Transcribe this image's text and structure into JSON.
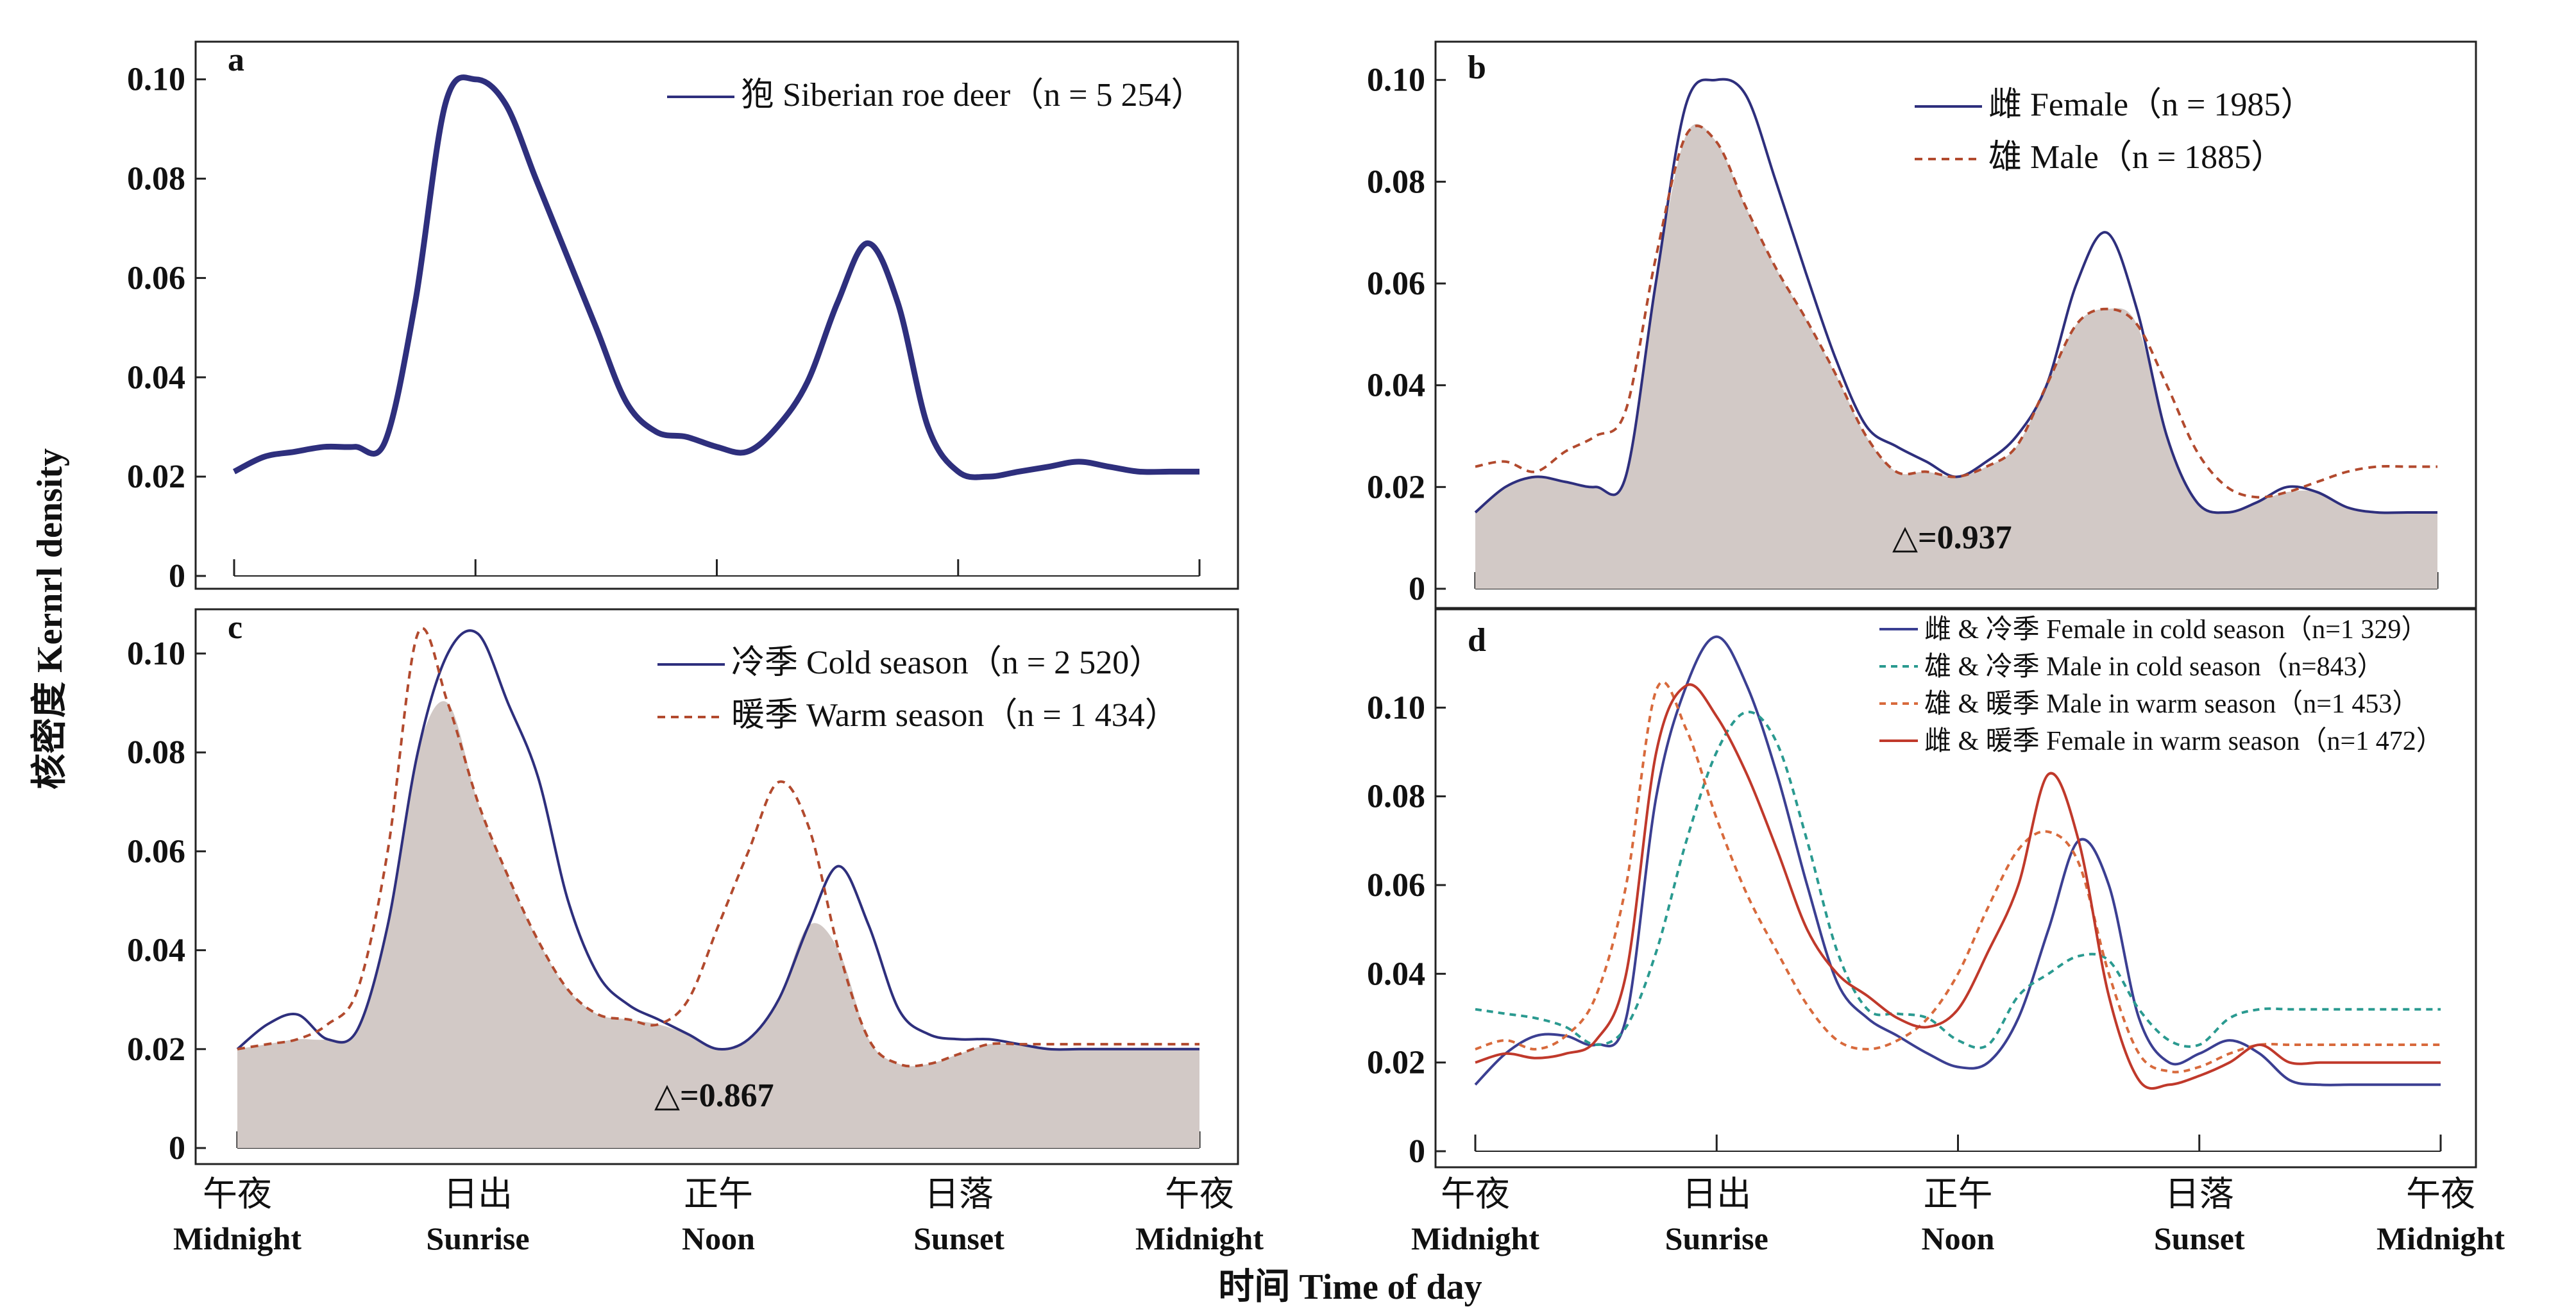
{
  "figure": {
    "ylabel": "核密度 Kernrl density",
    "xlabel": "时间 Time of day",
    "x_categories": [
      {
        "zh": "午夜",
        "en": "Midnight"
      },
      {
        "zh": "日出",
        "en": "Sunrise"
      },
      {
        "zh": "正午",
        "en": "Noon"
      },
      {
        "zh": "日落",
        "en": "Sunset"
      },
      {
        "zh": "午夜",
        "en": "Midnight"
      }
    ]
  },
  "chart_data": [
    {
      "panel": "a",
      "type": "line",
      "x": [
        0,
        1,
        2,
        3,
        4,
        5,
        6,
        7,
        8,
        9,
        10,
        11,
        12,
        13,
        14,
        15,
        16,
        17,
        18,
        19,
        20,
        21,
        22,
        23,
        24,
        25,
        26,
        27,
        28,
        29,
        30,
        31,
        32
      ],
      "ylim": [
        0,
        0.105
      ],
      "yticks": [
        "0",
        "0.02",
        "0.04",
        "0.06",
        "0.08",
        "0.10"
      ],
      "shaded": false,
      "overlap": "",
      "series": [
        {
          "name": "狍 Siberian roe deer（n = 5 254）",
          "color": "#2e2f7d",
          "dash": "",
          "width": 9,
          "values": [
            0.021,
            0.024,
            0.025,
            0.026,
            0.026,
            0.027,
            0.055,
            0.095,
            0.1,
            0.095,
            0.08,
            0.065,
            0.05,
            0.035,
            0.029,
            0.028,
            0.026,
            0.025,
            0.03,
            0.039,
            0.055,
            0.067,
            0.055,
            0.03,
            0.021,
            0.02,
            0.021,
            0.022,
            0.023,
            0.022,
            0.021,
            0.021,
            0.021
          ]
        }
      ]
    },
    {
      "panel": "b",
      "type": "line",
      "x": [
        0,
        1,
        2,
        3,
        4,
        5,
        6,
        7,
        8,
        9,
        10,
        11,
        12,
        13,
        14,
        15,
        16,
        17,
        18,
        19,
        20,
        21,
        22,
        23,
        24,
        25,
        26,
        27,
        28,
        29,
        30,
        31,
        32
      ],
      "ylim": [
        0,
        0.105
      ],
      "yticks": [
        "0",
        "0.02",
        "0.04",
        "0.06",
        "0.08",
        "0.10"
      ],
      "shaded": true,
      "overlap": "△=0.937",
      "series": [
        {
          "name": "雌 Female（n = 1985）",
          "color": "#2e2f7d",
          "dash": "",
          "width": 4,
          "values": [
            0.015,
            0.02,
            0.022,
            0.021,
            0.02,
            0.022,
            0.06,
            0.095,
            0.1,
            0.097,
            0.08,
            0.062,
            0.045,
            0.032,
            0.028,
            0.025,
            0.022,
            0.025,
            0.03,
            0.04,
            0.06,
            0.07,
            0.055,
            0.03,
            0.017,
            0.015,
            0.017,
            0.02,
            0.019,
            0.016,
            0.015,
            0.015,
            0.015
          ]
        },
        {
          "name": "雄 Male（n = 1885）",
          "color": "#b24a2e",
          "dash": "12,9",
          "width": 4,
          "values": [
            0.024,
            0.025,
            0.023,
            0.027,
            0.03,
            0.035,
            0.065,
            0.089,
            0.088,
            0.075,
            0.063,
            0.053,
            0.042,
            0.03,
            0.023,
            0.023,
            0.022,
            0.024,
            0.028,
            0.04,
            0.052,
            0.055,
            0.052,
            0.04,
            0.027,
            0.02,
            0.018,
            0.019,
            0.021,
            0.023,
            0.024,
            0.024,
            0.024
          ]
        }
      ]
    },
    {
      "panel": "c",
      "type": "line",
      "x": [
        0,
        1,
        2,
        3,
        4,
        5,
        6,
        7,
        8,
        9,
        10,
        11,
        12,
        13,
        14,
        15,
        16,
        17,
        18,
        19,
        20,
        21,
        22,
        23,
        24,
        25,
        26,
        27,
        28,
        29,
        30,
        31,
        32
      ],
      "ylim": [
        0,
        0.107
      ],
      "yticks": [
        "0",
        "0.02",
        "0.04",
        "0.06",
        "0.08",
        "0.10"
      ],
      "shaded": true,
      "overlap": "△=0.867",
      "series": [
        {
          "name": "冷季 Cold season（n = 2 520）",
          "color": "#2e2f7d",
          "dash": "",
          "width": 4,
          "values": [
            0.02,
            0.025,
            0.027,
            0.022,
            0.024,
            0.045,
            0.08,
            0.1,
            0.104,
            0.09,
            0.075,
            0.05,
            0.035,
            0.029,
            0.026,
            0.023,
            0.02,
            0.022,
            0.03,
            0.045,
            0.057,
            0.045,
            0.028,
            0.023,
            0.022,
            0.022,
            0.021,
            0.02,
            0.02,
            0.02,
            0.02,
            0.02,
            0.02
          ]
        },
        {
          "name": "暖季 Warm season（n = 1 434）",
          "color": "#b24a2e",
          "dash": "12,9",
          "width": 4,
          "values": [
            0.02,
            0.021,
            0.022,
            0.025,
            0.032,
            0.06,
            0.104,
            0.09,
            0.07,
            0.055,
            0.042,
            0.032,
            0.027,
            0.026,
            0.025,
            0.03,
            0.045,
            0.06,
            0.074,
            0.065,
            0.04,
            0.022,
            0.017,
            0.017,
            0.019,
            0.021,
            0.021,
            0.021,
            0.021,
            0.021,
            0.021,
            0.021,
            0.021
          ]
        }
      ]
    },
    {
      "panel": "d",
      "type": "line",
      "x": [
        0,
        1,
        2,
        3,
        4,
        5,
        6,
        7,
        8,
        9,
        10,
        11,
        12,
        13,
        14,
        15,
        16,
        17,
        18,
        19,
        20,
        21,
        22,
        23,
        24,
        25,
        26,
        27,
        28,
        29,
        30,
        31,
        32
      ],
      "ylim": [
        0,
        0.12
      ],
      "yticks": [
        "0",
        "0.02",
        "0.04",
        "0.06",
        "0.08",
        "0.10"
      ],
      "shaded": false,
      "overlap": "",
      "series": [
        {
          "name": "雌 & 冷季 Female in cold season（n=1 329）",
          "color": "#3b3f92",
          "dash": "",
          "width": 4,
          "values": [
            0.015,
            0.022,
            0.026,
            0.026,
            0.024,
            0.03,
            0.08,
            0.105,
            0.116,
            0.105,
            0.085,
            0.06,
            0.038,
            0.03,
            0.026,
            0.022,
            0.019,
            0.02,
            0.03,
            0.05,
            0.07,
            0.06,
            0.03,
            0.02,
            0.022,
            0.025,
            0.022,
            0.016,
            0.015,
            0.015,
            0.015,
            0.015,
            0.015
          ]
        },
        {
          "name": "雄 & 冷季 Male in cold season（n=843）",
          "color": "#2a9a90",
          "dash": "10,8",
          "width": 4,
          "values": [
            0.032,
            0.031,
            0.03,
            0.028,
            0.024,
            0.028,
            0.045,
            0.07,
            0.09,
            0.099,
            0.092,
            0.07,
            0.045,
            0.032,
            0.031,
            0.03,
            0.025,
            0.024,
            0.035,
            0.04,
            0.044,
            0.043,
            0.032,
            0.025,
            0.024,
            0.03,
            0.032,
            0.032,
            0.032,
            0.032,
            0.032,
            0.032,
            0.032
          ]
        },
        {
          "name": "雄 & 暖季 Male in warm season（n=1 453）",
          "color": "#d86a3c",
          "dash": "10,8",
          "width": 4,
          "values": [
            0.023,
            0.025,
            0.023,
            0.026,
            0.035,
            0.06,
            0.104,
            0.095,
            0.075,
            0.058,
            0.045,
            0.033,
            0.025,
            0.023,
            0.025,
            0.03,
            0.04,
            0.055,
            0.068,
            0.072,
            0.065,
            0.04,
            0.022,
            0.018,
            0.019,
            0.022,
            0.024,
            0.024,
            0.024,
            0.024,
            0.024,
            0.024,
            0.024
          ]
        },
        {
          "name": "雌 & 暖季 Female in warm season（n=1 472）",
          "color": "#c0392b",
          "dash": "",
          "width": 4,
          "values": [
            0.02,
            0.022,
            0.021,
            0.022,
            0.025,
            0.04,
            0.09,
            0.105,
            0.098,
            0.085,
            0.068,
            0.05,
            0.04,
            0.035,
            0.03,
            0.028,
            0.032,
            0.045,
            0.06,
            0.085,
            0.07,
            0.035,
            0.016,
            0.015,
            0.017,
            0.02,
            0.024,
            0.02,
            0.02,
            0.02,
            0.02,
            0.02,
            0.02
          ]
        }
      ]
    }
  ]
}
